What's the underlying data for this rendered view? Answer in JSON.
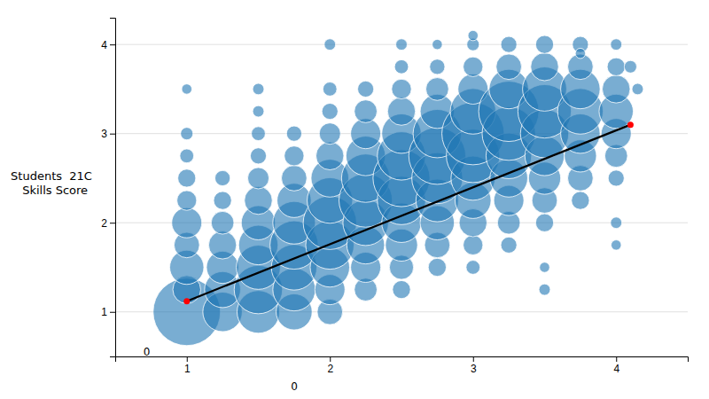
{
  "chart_data": {
    "type": "bubble",
    "ylabel": "Students  21C\n  Skills Score",
    "xlim": [
      0.5,
      4.5
    ],
    "ylim": [
      0.5,
      4.3
    ],
    "xticks": [
      1,
      2,
      3,
      4
    ],
    "yticks": [
      1,
      2,
      3,
      4
    ],
    "grid": "y",
    "x": [
      1.0,
      1.0,
      1.0,
      1.0,
      1.0,
      1.0,
      1.0,
      1.0,
      1.0,
      1.25,
      1.25,
      1.25,
      1.25,
      1.25,
      1.25,
      1.25,
      1.5,
      1.5,
      1.5,
      1.5,
      1.5,
      1.5,
      1.5,
      1.5,
      1.5,
      1.5,
      1.75,
      1.75,
      1.75,
      1.75,
      1.75,
      1.75,
      1.75,
      1.75,
      1.75,
      2.0,
      2.0,
      2.0,
      2.0,
      2.0,
      2.0,
      2.0,
      2.0,
      2.0,
      2.0,
      2.0,
      2.25,
      2.25,
      2.25,
      2.25,
      2.25,
      2.25,
      2.25,
      2.25,
      2.25,
      2.25,
      2.5,
      2.5,
      2.5,
      2.5,
      2.5,
      2.5,
      2.5,
      2.5,
      2.5,
      2.5,
      2.5,
      2.75,
      2.75,
      2.75,
      2.75,
      2.75,
      2.75,
      2.75,
      2.75,
      2.75,
      2.75,
      3.0,
      3.0,
      3.0,
      3.0,
      3.0,
      3.0,
      3.0,
      3.0,
      3.0,
      3.0,
      3.0,
      3.25,
      3.25,
      3.25,
      3.25,
      3.25,
      3.25,
      3.25,
      3.25,
      3.25,
      3.25,
      3.5,
      3.5,
      3.5,
      3.5,
      3.5,
      3.5,
      3.5,
      3.5,
      3.5,
      3.75,
      3.75,
      3.75,
      3.75,
      3.75,
      3.75,
      3.75,
      3.75,
      4.0,
      4.0,
      4.0,
      4.0,
      4.0,
      4.0,
      4.0,
      4.1,
      4.15,
      1.0,
      2.0,
      3.5,
      4.0,
      4.0,
      3.5,
      3.75,
      2.5,
      3.0,
      1.5,
      2.75
    ],
    "values": [
      1.0,
      1.25,
      1.5,
      1.75,
      2.0,
      2.25,
      2.5,
      2.75,
      3.0,
      1.0,
      1.25,
      1.5,
      1.75,
      2.0,
      2.25,
      2.5,
      1.0,
      1.25,
      1.5,
      1.75,
      2.0,
      2.25,
      2.5,
      2.75,
      3.0,
      3.25,
      1.0,
      1.25,
      1.5,
      1.75,
      2.0,
      2.25,
      2.5,
      2.75,
      3.0,
      1.0,
      1.25,
      1.5,
      1.75,
      2.0,
      2.25,
      2.5,
      2.75,
      3.0,
      3.25,
      3.5,
      1.25,
      1.5,
      1.75,
      2.0,
      2.25,
      2.5,
      2.75,
      3.0,
      3.25,
      3.5,
      1.25,
      1.5,
      1.75,
      2.0,
      2.25,
      2.5,
      2.75,
      3.0,
      3.25,
      3.5,
      3.75,
      1.5,
      1.75,
      2.0,
      2.25,
      2.5,
      2.75,
      3.0,
      3.25,
      3.5,
      3.75,
      1.5,
      1.75,
      2.0,
      2.25,
      2.5,
      2.75,
      3.0,
      3.25,
      3.5,
      3.75,
      4.0,
      1.75,
      2.0,
      2.25,
      2.5,
      2.75,
      3.0,
      3.25,
      3.5,
      3.75,
      4.0,
      2.0,
      2.25,
      2.5,
      2.75,
      3.0,
      3.25,
      3.5,
      3.75,
      4.0,
      2.25,
      2.5,
      2.75,
      3.0,
      3.25,
      3.5,
      3.75,
      4.0,
      2.5,
      2.75,
      3.0,
      3.25,
      3.5,
      3.75,
      4.0,
      3.75,
      3.5,
      3.5,
      4.0,
      1.5,
      2.0,
      1.75,
      1.25,
      3.9,
      4.0,
      4.1,
      3.5,
      4.0
    ],
    "sizes": [
      3500,
      600,
      900,
      500,
      700,
      300,
      250,
      150,
      120,
      1200,
      1000,
      800,
      600,
      400,
      250,
      180,
      1400,
      1800,
      1500,
      1200,
      900,
      600,
      350,
      200,
      150,
      100,
      1000,
      1400,
      1600,
      1800,
      1400,
      900,
      500,
      300,
      180,
      500,
      700,
      1200,
      1800,
      2200,
      1600,
      1100,
      600,
      350,
      200,
      150,
      400,
      700,
      1100,
      1600,
      2200,
      1800,
      1200,
      700,
      400,
      200,
      250,
      450,
      800,
      1200,
      1800,
      2500,
      1800,
      1200,
      600,
      300,
      150,
      250,
      500,
      900,
      1400,
      2000,
      2500,
      1800,
      900,
      400,
      180,
      150,
      300,
      600,
      1000,
      1500,
      2200,
      3000,
      1600,
      700,
      300,
      120,
      200,
      400,
      700,
      1100,
      1600,
      2200,
      2800,
      1200,
      500,
      200,
      250,
      500,
      800,
      1200,
      1800,
      2200,
      1500,
      600,
      250,
      250,
      500,
      800,
      1200,
      1600,
      1200,
      500,
      200,
      200,
      400,
      700,
      900,
      600,
      250,
      100,
      120,
      100,
      80,
      100,
      80,
      100,
      80,
      100,
      80,
      100,
      80,
      100,
      80
    ],
    "trend_line": {
      "type": "line",
      "color": "black",
      "marker": "circle",
      "x": [
        1.0,
        4.1
      ],
      "values": [
        1.12,
        3.1
      ]
    },
    "annotations": [
      {
        "text": "0",
        "x": 0.72,
        "y": 0.54
      },
      {
        "text": "0"
      }
    ]
  }
}
